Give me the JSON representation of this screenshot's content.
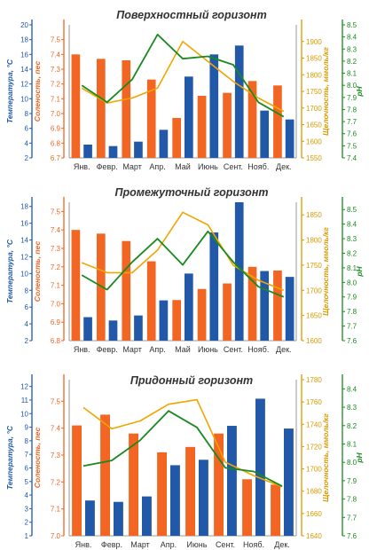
{
  "chart_data": [
    {
      "type": "bar",
      "title": "Поверхностный горизонт",
      "categories": [
        "Янв.",
        "Февр.",
        "Март",
        "Апр.",
        "Май",
        "Июнь",
        "Сент.",
        "Нояб.",
        "Дек."
      ],
      "axes": {
        "temp": {
          "label": "Температура, °C",
          "ylim": [
            2,
            20
          ],
          "ticks": [
            2,
            4,
            6,
            8,
            10,
            12,
            14,
            16,
            18,
            20
          ]
        },
        "sal": {
          "label": "Соленость, пес",
          "ylim": [
            6.7,
            7.6
          ],
          "ticks": [
            6.7,
            6.8,
            6.9,
            7.0,
            7.1,
            7.2,
            7.3,
            7.4,
            7.5
          ]
        },
        "alk": {
          "label": "Щелочность, ммоль/кг",
          "ylim": [
            1550,
            1950
          ],
          "ticks": [
            1550,
            1600,
            1650,
            1700,
            1750,
            1800,
            1850,
            1900
          ]
        },
        "ph": {
          "label": "pH",
          "ylim": [
            7.4,
            8.5
          ],
          "ticks": [
            7.4,
            7.5,
            7.6,
            7.7,
            7.8,
            7.9,
            8.0,
            8.1,
            8.2,
            8.3,
            8.4,
            8.5
          ]
        }
      },
      "series": [
        {
          "name": "Соленость",
          "kind": "bar",
          "axis": "sal",
          "color": "#f26522",
          "values": [
            7.4,
            7.37,
            7.36,
            7.23,
            6.97,
            7.12,
            7.14,
            7.22,
            7.19
          ]
        },
        {
          "name": "Температура",
          "kind": "bar",
          "axis": "temp",
          "color": "#2158a8",
          "values": [
            3.8,
            3.6,
            4.2,
            5.8,
            13.0,
            16.0,
            17.2,
            8.4,
            7.2
          ]
        },
        {
          "name": "Щелочность",
          "kind": "line",
          "axis": "alk",
          "color": "#f0a500",
          "values": [
            1760,
            1715,
            1730,
            1760,
            1900,
            1840,
            1780,
            1730,
            1690
          ]
        },
        {
          "name": "pH",
          "kind": "line",
          "axis": "ph",
          "color": "#188a1e",
          "values": [
            8.0,
            7.86,
            8.05,
            8.42,
            8.22,
            8.24,
            8.17,
            7.86,
            7.74
          ]
        }
      ]
    },
    {
      "type": "bar",
      "title": "Промежуточный горизонт",
      "categories": [
        "Янв.",
        "Февр.",
        "Март",
        "Апр.",
        "Май",
        "Июнь",
        "Сент.",
        "Нояб.",
        "Дек."
      ],
      "axes": {
        "temp": {
          "label": "Температура, °C",
          "ylim": [
            2,
            18.5
          ],
          "ticks": [
            2,
            4,
            6,
            8,
            10,
            12,
            14,
            16,
            18
          ]
        },
        "sal": {
          "label": "Соленость, пес",
          "ylim": [
            6.8,
            7.55
          ],
          "ticks": [
            6.8,
            6.9,
            7.0,
            7.1,
            7.2,
            7.3,
            7.4,
            7.5
          ]
        },
        "alk": {
          "label": "Щелочность, ммоль/кг",
          "ylim": [
            1600,
            1875
          ],
          "ticks": [
            1600,
            1650,
            1700,
            1750,
            1800,
            1850
          ]
        },
        "ph": {
          "label": "pH",
          "ylim": [
            7.6,
            8.55
          ],
          "ticks": [
            7.6,
            7.7,
            7.8,
            7.9,
            8.0,
            8.1,
            8.2,
            8.3,
            8.4,
            8.5
          ]
        }
      },
      "series": [
        {
          "name": "Соленость",
          "kind": "bar",
          "axis": "sal",
          "color": "#f26522",
          "values": [
            7.4,
            7.38,
            7.34,
            7.23,
            7.02,
            7.08,
            7.11,
            7.2,
            7.18
          ]
        },
        {
          "name": "Температура",
          "kind": "bar",
          "axis": "temp",
          "color": "#2158a8",
          "values": [
            4.8,
            4.4,
            5.0,
            6.8,
            10.0,
            14.9,
            18.5,
            10.3,
            9.6
          ]
        },
        {
          "name": "Щелочность",
          "kind": "line",
          "axis": "alk",
          "color": "#f0a500",
          "values": [
            1755,
            1735,
            1735,
            1780,
            1855,
            1830,
            1750,
            1720,
            1700
          ]
        },
        {
          "name": "pH",
          "kind": "line",
          "axis": "ph",
          "color": "#188a1e",
          "values": [
            8.05,
            7.95,
            8.14,
            8.3,
            8.12,
            8.35,
            8.14,
            7.97,
            7.9
          ]
        }
      ]
    },
    {
      "type": "bar",
      "title": "Придонный горизонт",
      "categories": [
        "Янв.",
        "Февр.",
        "Март",
        "Апр.",
        "Июнь",
        "Сент.",
        "Нояб.",
        "Дек."
      ],
      "axes": {
        "temp": {
          "label": "Температура, °C",
          "ylim": [
            1,
            12.5
          ],
          "ticks": [
            1,
            2,
            3,
            4,
            5,
            6,
            7,
            8,
            9,
            10,
            11,
            12
          ]
        },
        "sal": {
          "label": "Соленость, пес",
          "ylim": [
            7.0,
            7.58
          ],
          "ticks": [
            7.0,
            7.1,
            7.2,
            7.3,
            7.4,
            7.5
          ]
        },
        "alk": {
          "label": "Щелочность, ммоль/кг",
          "ylim": [
            1640,
            1780
          ],
          "ticks": [
            1640,
            1660,
            1680,
            1700,
            1720,
            1740,
            1760,
            1780
          ]
        },
        "ph": {
          "label": "pH",
          "ylim": [
            7.6,
            8.45
          ],
          "ticks": [
            7.6,
            7.7,
            7.8,
            7.9,
            8.0,
            8.1,
            8.2,
            8.3,
            8.4
          ]
        }
      },
      "series": [
        {
          "name": "Соленость",
          "kind": "bar",
          "axis": "sal",
          "color": "#f26522",
          "values": [
            7.41,
            7.45,
            7.38,
            7.31,
            7.33,
            7.38,
            7.21,
            7.19
          ]
        },
        {
          "name": "Температура",
          "kind": "bar",
          "axis": "temp",
          "color": "#2158a8",
          "values": [
            3.6,
            3.5,
            3.9,
            6.2,
            6.6,
            9.1,
            11.1,
            8.9
          ]
        },
        {
          "name": "Щелочность",
          "kind": "line",
          "axis": "alk",
          "color": "#f0a500",
          "values": [
            1755,
            1736,
            1743,
            1758,
            1762,
            1706,
            1694,
            1684
          ]
        },
        {
          "name": "pH",
          "kind": "line",
          "axis": "ph",
          "color": "#188a1e",
          "values": [
            7.98,
            8.01,
            8.12,
            8.28,
            8.19,
            7.97,
            7.95,
            7.87
          ]
        }
      ]
    }
  ]
}
